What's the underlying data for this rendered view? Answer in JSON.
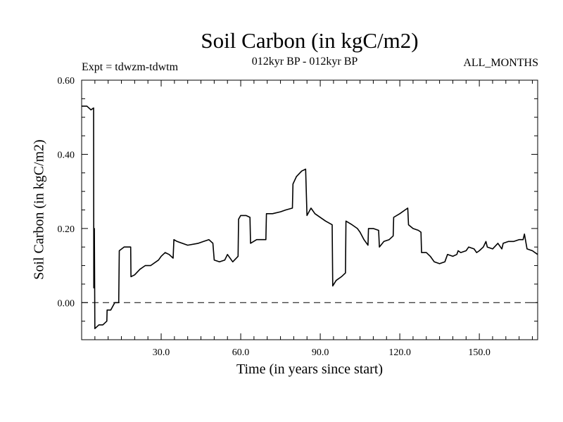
{
  "chart_data": {
    "type": "line",
    "title": "Soil Carbon (in kgC/m2)",
    "subtitle": "012kyr BP - 012kyr BP",
    "annotations": {
      "expt": "Expt = tdwzm-tdwtm",
      "months": "ALL_MONTHS"
    },
    "xlabel": "Time (in years since start)",
    "ylabel": "Soil Carbon (in kgC/m2)",
    "xlim": [
      0,
      172
    ],
    "ylim": [
      -0.1,
      0.6
    ],
    "xticks": [
      30,
      60,
      90,
      120,
      150
    ],
    "xtick_labels": [
      "30.0",
      "60.0",
      "90.0",
      "120.0",
      "150.0"
    ],
    "yticks": [
      0.0,
      0.2,
      0.4,
      0.6
    ],
    "ytick_labels": [
      "0.00",
      "0.20",
      "0.40",
      "0.60"
    ],
    "zero_line": "dashed",
    "grid": false,
    "series": [
      {
        "points": [
          [
            0,
            0.53
          ],
          [
            2,
            0.53
          ],
          [
            3.5,
            0.52
          ],
          [
            4.5,
            0.525
          ],
          [
            4.6,
            0.04
          ],
          [
            4.8,
            0.2
          ],
          [
            5.0,
            -0.07
          ],
          [
            6.5,
            -0.06
          ],
          [
            8,
            -0.06
          ],
          [
            9.5,
            -0.05
          ],
          [
            9.6,
            -0.02
          ],
          [
            11,
            -0.02
          ],
          [
            12.5,
            0.0
          ],
          [
            14,
            0.0
          ],
          [
            14.2,
            0.14
          ],
          [
            16,
            0.15
          ],
          [
            18.5,
            0.15
          ],
          [
            18.6,
            0.07
          ],
          [
            20,
            0.075
          ],
          [
            22,
            0.09
          ],
          [
            24,
            0.1
          ],
          [
            26,
            0.1
          ],
          [
            29,
            0.115
          ],
          [
            30,
            0.125
          ],
          [
            31.5,
            0.135
          ],
          [
            33,
            0.13
          ],
          [
            34.5,
            0.12
          ],
          [
            34.8,
            0.17
          ],
          [
            36,
            0.165
          ],
          [
            40,
            0.155
          ],
          [
            44,
            0.16
          ],
          [
            46,
            0.165
          ],
          [
            48,
            0.17
          ],
          [
            49.5,
            0.16
          ],
          [
            50,
            0.115
          ],
          [
            52,
            0.11
          ],
          [
            54,
            0.115
          ],
          [
            55,
            0.13
          ],
          [
            57,
            0.11
          ],
          [
            59,
            0.125
          ],
          [
            59.2,
            0.225
          ],
          [
            60,
            0.235
          ],
          [
            62,
            0.235
          ],
          [
            63.5,
            0.23
          ],
          [
            63.7,
            0.16
          ],
          [
            66,
            0.17
          ],
          [
            69.5,
            0.17
          ],
          [
            69.7,
            0.24
          ],
          [
            72,
            0.24
          ],
          [
            75,
            0.245
          ],
          [
            77,
            0.25
          ],
          [
            79.5,
            0.255
          ],
          [
            79.7,
            0.32
          ],
          [
            81,
            0.34
          ],
          [
            83,
            0.355
          ],
          [
            84.5,
            0.36
          ],
          [
            85,
            0.235
          ],
          [
            86.5,
            0.255
          ],
          [
            88,
            0.24
          ],
          [
            92,
            0.22
          ],
          [
            94.5,
            0.21
          ],
          [
            94.7,
            0.045
          ],
          [
            96,
            0.06
          ],
          [
            98,
            0.07
          ],
          [
            99.5,
            0.08
          ],
          [
            99.7,
            0.22
          ],
          [
            102,
            0.21
          ],
          [
            104,
            0.2
          ],
          [
            105,
            0.19
          ],
          [
            106.5,
            0.17
          ],
          [
            108,
            0.155
          ],
          [
            108.2,
            0.2
          ],
          [
            110,
            0.2
          ],
          [
            112,
            0.195
          ],
          [
            112.3,
            0.15
          ],
          [
            114,
            0.165
          ],
          [
            116,
            0.17
          ],
          [
            117.5,
            0.18
          ],
          [
            117.7,
            0.23
          ],
          [
            120,
            0.24
          ],
          [
            122,
            0.25
          ],
          [
            123,
            0.255
          ],
          [
            123.3,
            0.21
          ],
          [
            125,
            0.2
          ],
          [
            127,
            0.195
          ],
          [
            128,
            0.19
          ],
          [
            128.2,
            0.135
          ],
          [
            130,
            0.135
          ],
          [
            131.5,
            0.125
          ],
          [
            133,
            0.11
          ],
          [
            135,
            0.105
          ],
          [
            137,
            0.11
          ],
          [
            138,
            0.13
          ],
          [
            140,
            0.125
          ],
          [
            141.5,
            0.13
          ],
          [
            142,
            0.14
          ],
          [
            143,
            0.135
          ],
          [
            145,
            0.14
          ],
          [
            146,
            0.15
          ],
          [
            148,
            0.145
          ],
          [
            149,
            0.135
          ],
          [
            150,
            0.14
          ],
          [
            151.5,
            0.15
          ],
          [
            152.5,
            0.165
          ],
          [
            153,
            0.15
          ],
          [
            155,
            0.145
          ],
          [
            157,
            0.16
          ],
          [
            158.5,
            0.145
          ],
          [
            159,
            0.16
          ],
          [
            161,
            0.165
          ],
          [
            163,
            0.165
          ],
          [
            165,
            0.17
          ],
          [
            166.5,
            0.17
          ],
          [
            167,
            0.185
          ],
          [
            168,
            0.145
          ],
          [
            170,
            0.14
          ],
          [
            172,
            0.13
          ]
        ]
      }
    ]
  }
}
